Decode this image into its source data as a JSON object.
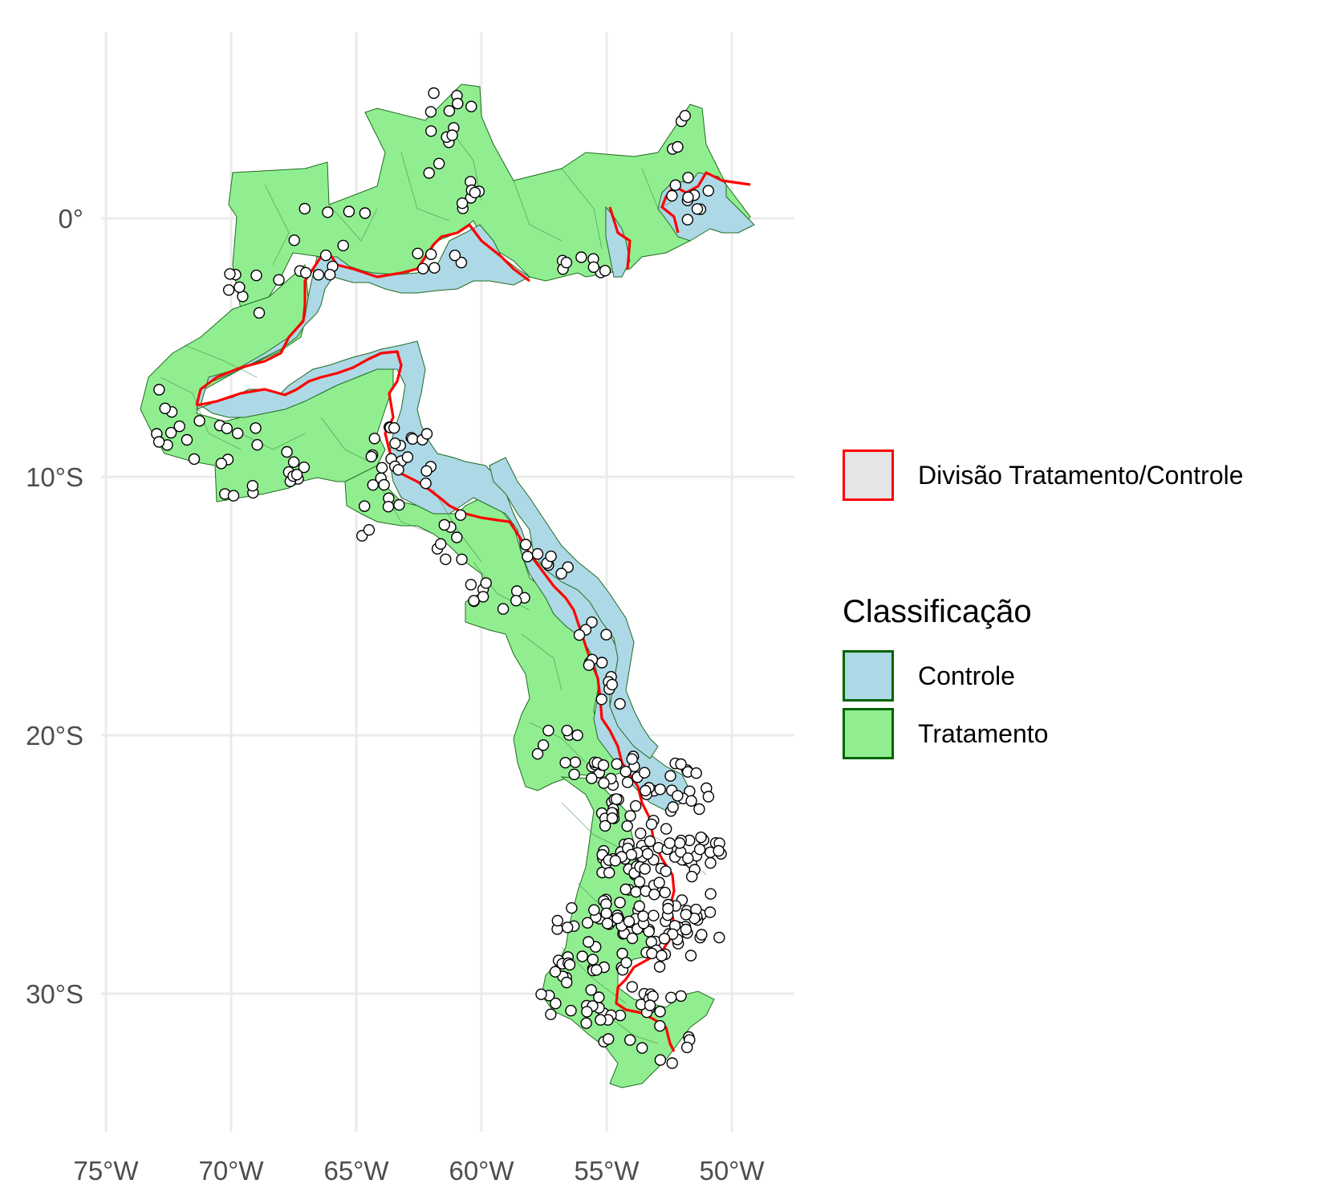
{
  "map": {
    "x_ticks": [
      "75°W",
      "70°W",
      "65°W",
      "60°W",
      "55°W",
      "50°W"
    ],
    "y_ticks": [
      "0°",
      "10°S",
      "20°S",
      "30°S"
    ]
  },
  "legend_division": {
    "label": "Divisão Tratamento/Controle",
    "fill": "#e5e5e5",
    "stroke": "#ff0000"
  },
  "legend_classification": {
    "title": "Classificação",
    "items": [
      {
        "label": "Controle",
        "fill": "#add8e6",
        "stroke": "#006400"
      },
      {
        "label": "Tratamento",
        "fill": "#90ee90",
        "stroke": "#006400"
      }
    ]
  },
  "colors": {
    "control": "#add8e6",
    "treatment": "#90ee90",
    "division_line": "#ff0000",
    "points": "#ffffff"
  }
}
